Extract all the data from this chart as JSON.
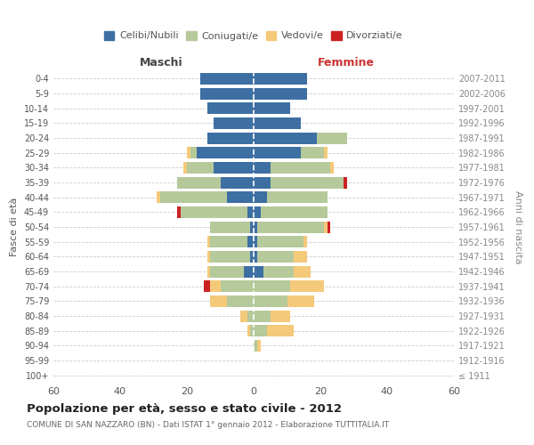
{
  "age_groups": [
    "100+",
    "95-99",
    "90-94",
    "85-89",
    "80-84",
    "75-79",
    "70-74",
    "65-69",
    "60-64",
    "55-59",
    "50-54",
    "45-49",
    "40-44",
    "35-39",
    "30-34",
    "25-29",
    "20-24",
    "15-19",
    "10-14",
    "5-9",
    "0-4"
  ],
  "birth_years": [
    "≤ 1911",
    "1912-1916",
    "1917-1921",
    "1922-1926",
    "1927-1931",
    "1932-1936",
    "1937-1941",
    "1942-1946",
    "1947-1951",
    "1952-1956",
    "1957-1961",
    "1962-1966",
    "1967-1971",
    "1972-1976",
    "1977-1981",
    "1982-1986",
    "1987-1991",
    "1992-1996",
    "1997-2001",
    "2002-2006",
    "2007-2011"
  ],
  "males": {
    "celibi": [
      0,
      0,
      0,
      0,
      0,
      0,
      0,
      3,
      1,
      2,
      1,
      2,
      8,
      10,
      12,
      17,
      14,
      12,
      14,
      16,
      16
    ],
    "coniugati": [
      0,
      0,
      0,
      1,
      2,
      8,
      10,
      10,
      12,
      11,
      12,
      20,
      20,
      13,
      8,
      2,
      0,
      0,
      0,
      0,
      0
    ],
    "vedovi": [
      0,
      0,
      0,
      1,
      2,
      5,
      3,
      1,
      1,
      1,
      0,
      0,
      1,
      0,
      1,
      1,
      0,
      0,
      0,
      0,
      0
    ],
    "divorziati": [
      0,
      0,
      0,
      0,
      0,
      0,
      2,
      0,
      0,
      0,
      0,
      1,
      0,
      0,
      0,
      0,
      0,
      0,
      0,
      0,
      0
    ]
  },
  "females": {
    "nubili": [
      0,
      0,
      0,
      0,
      0,
      0,
      0,
      3,
      1,
      1,
      1,
      2,
      4,
      5,
      5,
      14,
      19,
      14,
      11,
      16,
      16
    ],
    "coniugate": [
      0,
      0,
      1,
      4,
      5,
      10,
      11,
      9,
      11,
      14,
      20,
      20,
      18,
      22,
      18,
      7,
      9,
      0,
      0,
      0,
      0
    ],
    "vedove": [
      0,
      0,
      1,
      8,
      6,
      8,
      10,
      5,
      4,
      1,
      1,
      0,
      0,
      0,
      1,
      1,
      0,
      0,
      0,
      0,
      0
    ],
    "divorziate": [
      0,
      0,
      0,
      0,
      0,
      0,
      0,
      0,
      0,
      0,
      1,
      0,
      0,
      1,
      0,
      0,
      0,
      0,
      0,
      0,
      0
    ]
  },
  "colors": {
    "celibi": "#3d6fa3",
    "coniugati": "#b5c99a",
    "vedovi": "#f5c97a",
    "divorziati": "#cc2222"
  },
  "title": "Popolazione per età, sesso e stato civile - 2012",
  "subtitle": "COMUNE DI SAN NAZZARO (BN) - Dati ISTAT 1° gennaio 2012 - Elaborazione TUTTITALIA.IT",
  "xlabel_left": "Maschi",
  "xlabel_right": "Femmine",
  "ylabel_left": "Fasce di età",
  "ylabel_right": "Anni di nascita",
  "xlim": 60,
  "legend_labels": [
    "Celibi/Nubili",
    "Coniugati/e",
    "Vedovi/e",
    "Divorziati/e"
  ],
  "bg_color": "#ffffff",
  "grid_color": "#cccccc"
}
